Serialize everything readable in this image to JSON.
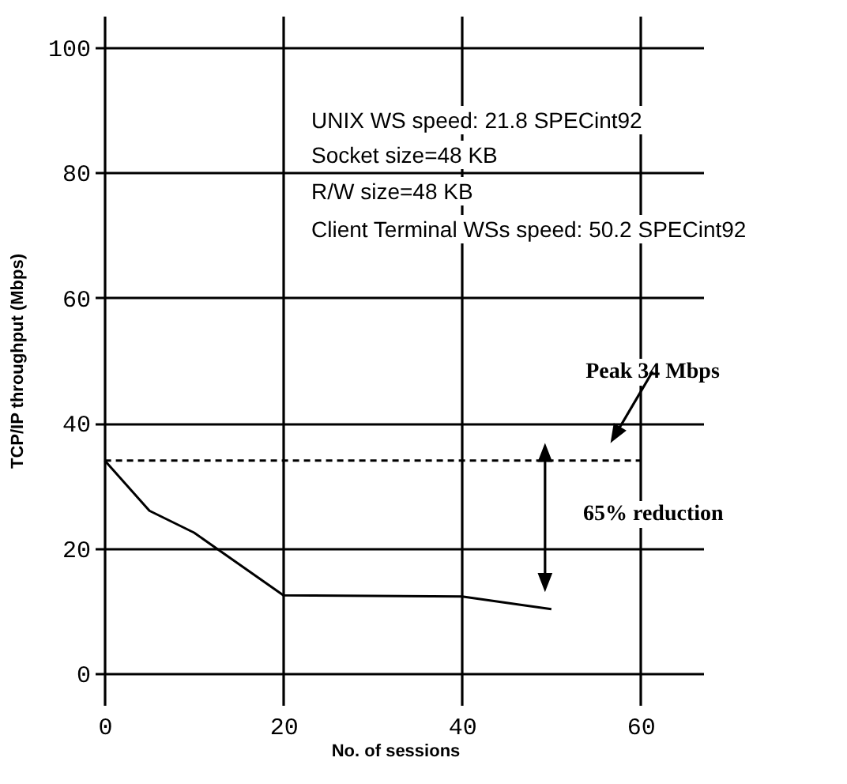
{
  "chart_data": {
    "type": "line",
    "xlabel": "No. of sessions",
    "ylabel": "TCP/IP throughput (Mbps)",
    "xlim": [
      -2,
      67
    ],
    "ylim": [
      -5,
      105
    ],
    "xticks": [
      0,
      20,
      40,
      60
    ],
    "yticks": [
      0,
      20,
      40,
      60,
      80,
      100
    ],
    "grid": true,
    "marker": "none",
    "line_style": "solid",
    "series": [
      {
        "color": "#000000",
        "x": [
          0,
          5,
          10,
          20,
          40,
          50
        ],
        "values": [
          34,
          26,
          22.5,
          12.5,
          12.3,
          10.3
        ]
      },
      {
        "color": "#000000",
        "type": "line",
        "line_style": "dashed",
        "x": [
          0,
          60
        ],
        "values": [
          34,
          34
        ]
      }
    ],
    "annotations": [
      "UNIX WS speed: 21.8 SPECint92",
      "Socket size=48 KB",
      "R/W size=48 KB",
      "Client Terminal WSs speed: 50.2 SPECint92",
      "Peak 34 Mbps",
      "65% reduction"
    ]
  }
}
